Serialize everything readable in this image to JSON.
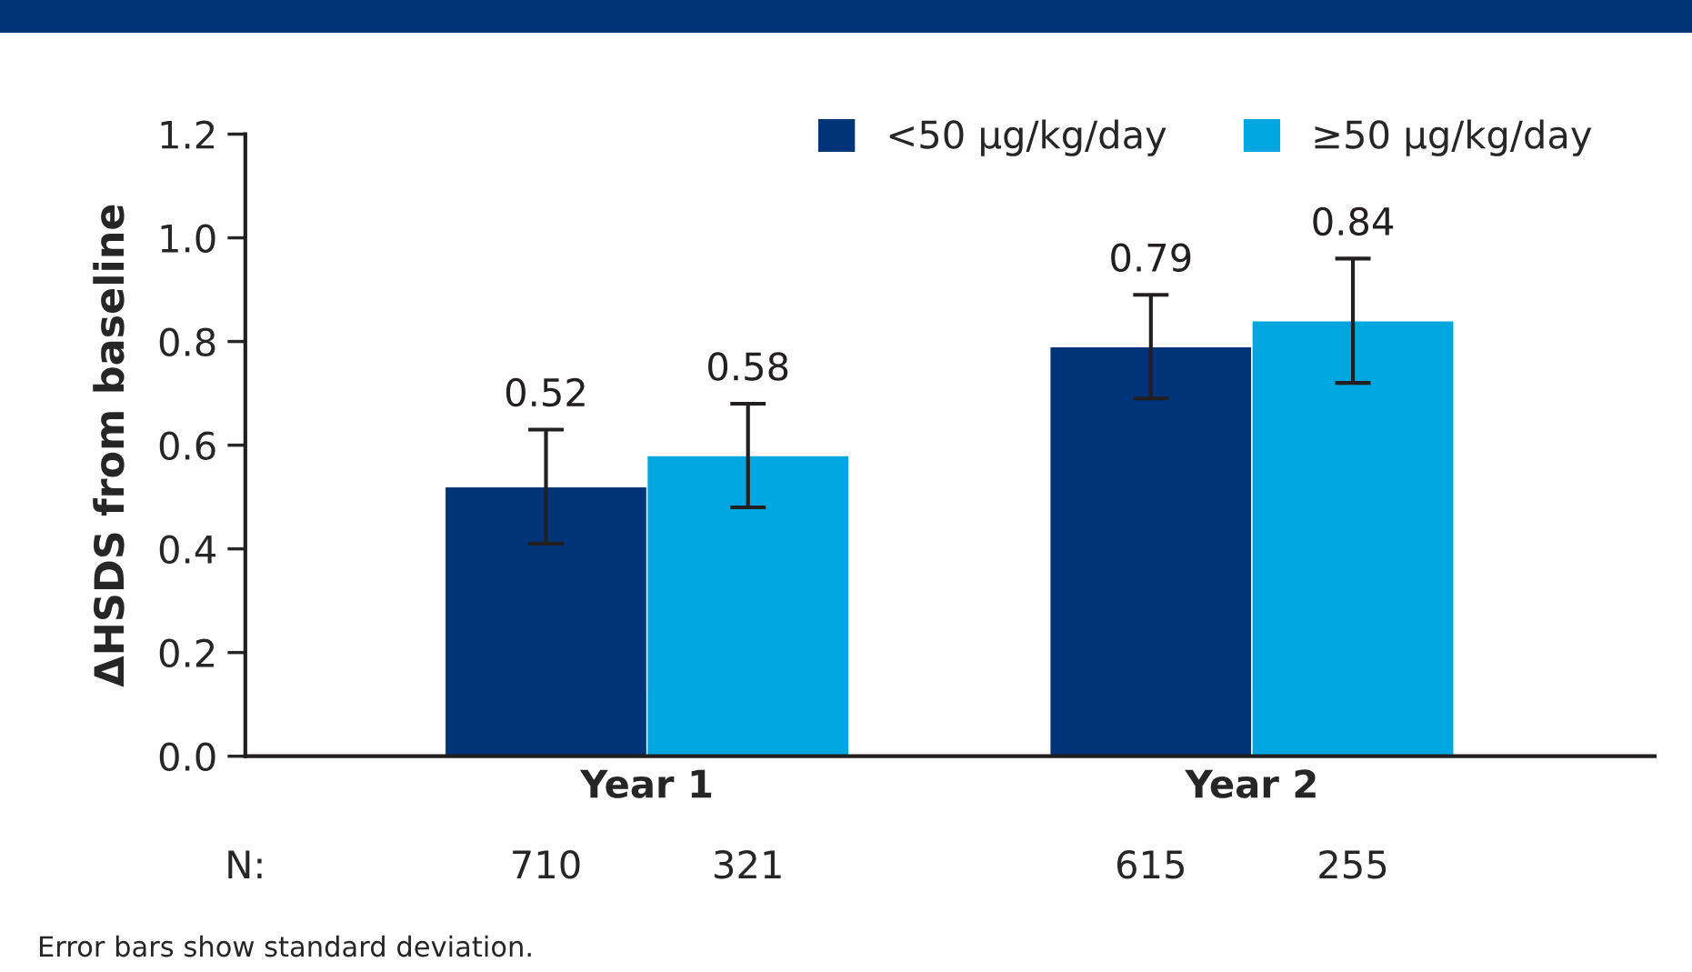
{
  "chart_data": {
    "type": "bar",
    "ylabel": "ΔHSDS from baseline",
    "categories": [
      "Year 1",
      "Year 2"
    ],
    "series": [
      {
        "name": "<50 µg/kg/day",
        "color": "#003478",
        "values": [
          0.52,
          0.79
        ],
        "errors": [
          0.11,
          0.1
        ]
      },
      {
        "name": "≥50 µg/kg/day",
        "color": "#00a6e0",
        "values": [
          0.58,
          0.84
        ],
        "errors": [
          0.1,
          0.12
        ]
      }
    ],
    "ylim": [
      0,
      1.2
    ],
    "yticks": [
      "0.0",
      0.2,
      0.4,
      0.6,
      0.8,
      "1.0",
      1.2
    ],
    "data_labels": true,
    "legend": "top right",
    "grid": false,
    "annotations": [
      "N:",
      "710",
      "321",
      "615",
      "255",
      "Error bars show standard deviation."
    ]
  }
}
